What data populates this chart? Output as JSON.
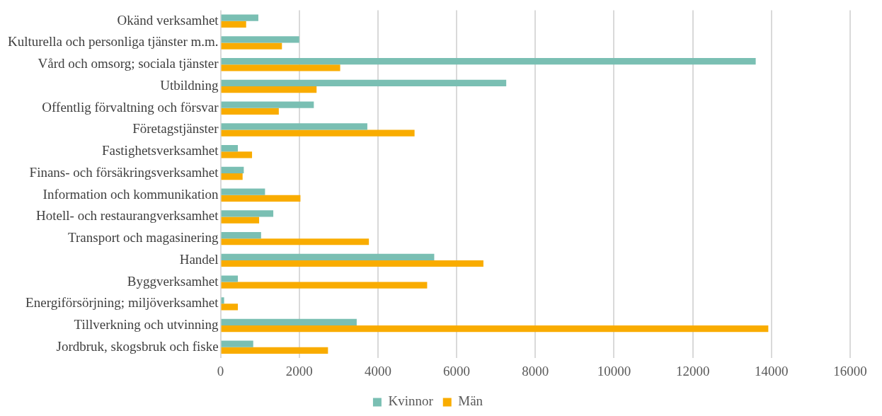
{
  "chart_data": {
    "type": "bar",
    "orientation": "horizontal",
    "categories": [
      "Okänd verksamhet",
      "Kulturella och personliga tjänster m.m.",
      "Vård och omsorg; sociala tjänster",
      "Utbildning",
      "Offentlig förvaltning och försvar",
      "Företagstjänster",
      "Fastighetsverksamhet",
      "Finans- och försäkringsverksamhet",
      "Information och kommunikation",
      "Hotell- och restaurangverksamhet",
      "Transport och magasinering",
      "Handel",
      "Byggverksamhet",
      "Energiförsörjning; miljöverksamhet",
      "Tillverkning och utvinning",
      "Jordbruk, skogsbruk och fiske"
    ],
    "series": [
      {
        "name": "Kvinnor",
        "color": "#7abfb3",
        "values": [
          960,
          2000,
          13600,
          7260,
          2370,
          3730,
          440,
          590,
          1130,
          1340,
          1030,
          5430,
          440,
          90,
          3460,
          830
        ]
      },
      {
        "name": "Män",
        "color": "#f9ac00",
        "values": [
          650,
          1560,
          3040,
          2440,
          1480,
          4930,
          800,
          560,
          2030,
          980,
          3770,
          6680,
          5250,
          440,
          13920,
          2730
        ]
      }
    ],
    "xlim": [
      0,
      16000
    ],
    "xticks": [
      0,
      2000,
      4000,
      6000,
      8000,
      10000,
      12000,
      14000,
      16000
    ],
    "grid": "x",
    "legend": "bottom"
  }
}
